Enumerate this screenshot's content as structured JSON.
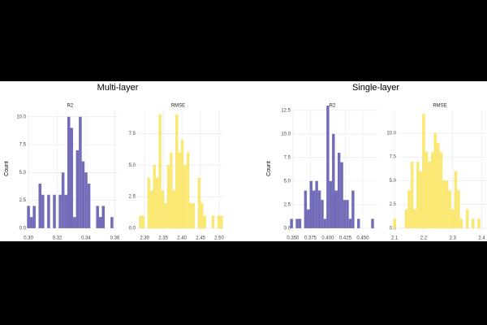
{
  "panels": [
    {
      "title": "Multi-layer"
    },
    {
      "title": "Single-layer"
    }
  ],
  "chart_data": [
    {
      "type": "histogram",
      "title": "R2",
      "ylabel": "Count",
      "color": "#5b52ad",
      "grid": true,
      "bins": [
        0.299,
        0.301,
        0.303,
        0.305,
        0.307,
        0.309,
        0.311,
        0.313,
        0.315,
        0.317,
        0.319,
        0.321,
        0.323,
        0.325,
        0.327,
        0.329,
        0.331,
        0.333,
        0.335,
        0.337,
        0.339,
        0.341,
        0.343,
        0.345,
        0.347,
        0.349,
        0.351,
        0.353,
        0.355,
        0.357,
        0.359
      ],
      "counts": [
        2,
        1,
        2,
        0,
        4,
        3,
        0,
        3,
        0,
        3,
        0,
        3,
        5,
        3,
        10,
        9,
        1,
        7,
        10,
        6,
        5,
        4,
        0,
        0,
        2,
        1,
        2,
        0,
        0,
        1
      ],
      "xlim": [
        0.296,
        0.362
      ],
      "ylim": [
        -0.3,
        11
      ],
      "xticks": [
        {
          "value": 0.3,
          "label": "0.30"
        },
        0.32,
        0.34,
        {
          "value": 0.36,
          "label": "0.36"
        }
      ],
      "yticks": [
        {
          "value": 0,
          "label": "0.0"
        },
        2.5,
        {
          "value": 5,
          "label": "5.0"
        },
        7.5,
        {
          "value": 10,
          "label": "10.0"
        }
      ]
    },
    {
      "type": "histogram",
      "title": "RMSE",
      "color": "#f9e45a",
      "grid": true,
      "bins": [
        2.285,
        2.2925,
        2.3,
        2.3075,
        2.315,
        2.3225,
        2.33,
        2.3375,
        2.345,
        2.3525,
        2.36,
        2.3675,
        2.375,
        2.3825,
        2.39,
        2.3975,
        2.405,
        2.4125,
        2.42,
        2.4275,
        2.435,
        2.4425,
        2.45,
        2.4575,
        2.465,
        2.4725,
        2.48,
        2.4875,
        2.495,
        2.5025,
        2.51
      ],
      "counts": [
        1,
        1,
        0,
        4,
        3,
        5,
        4,
        9,
        3,
        2,
        5,
        6,
        3,
        9,
        6,
        7,
        5,
        6,
        2,
        2,
        0,
        4,
        2,
        1,
        0,
        0,
        1,
        0,
        1,
        1
      ],
      "xlim": [
        2.267,
        2.513
      ],
      "ylim": [
        -0.25,
        9.7
      ],
      "xticks": [
        {
          "value": 2.3,
          "label": "2.30"
        },
        2.35,
        {
          "value": 2.4,
          "label": "2.40"
        },
        2.45,
        {
          "value": 2.5,
          "label": "2.50"
        }
      ],
      "yticks": [
        {
          "value": 0,
          "label": "0.0"
        },
        2.5,
        {
          "value": 5,
          "label": "5.0"
        },
        7.5
      ]
    },
    {
      "type": "histogram",
      "title": "R2",
      "ylabel": "Count",
      "color": "#5b52ad",
      "grid": true,
      "bins": [
        0.346,
        0.35,
        0.354,
        0.358,
        0.362,
        0.366,
        0.37,
        0.374,
        0.378,
        0.382,
        0.386,
        0.39,
        0.394,
        0.398,
        0.402,
        0.406,
        0.41,
        0.414,
        0.418,
        0.422,
        0.426,
        0.43,
        0.434,
        0.438,
        0.442,
        0.446,
        0.45,
        0.454,
        0.458,
        0.462,
        0.466
      ],
      "counts": [
        1,
        0,
        1,
        1,
        0,
        4,
        2,
        5,
        4,
        5,
        4,
        3,
        1,
        13,
        5,
        10,
        4,
        8,
        7,
        3,
        3,
        1,
        4,
        0,
        1,
        0,
        0,
        0,
        0,
        1
      ],
      "xlim": [
        0.342,
        0.471
      ],
      "ylim": [
        -0.35,
        13.0
      ],
      "xticks": [
        {
          "value": 0.35,
          "label": "0.350"
        },
        0.375,
        {
          "value": 0.4,
          "label": "0.400"
        },
        0.425,
        {
          "value": 0.45,
          "label": "0.450"
        }
      ],
      "yticks": [
        {
          "value": 0,
          "label": "0.0"
        },
        2.5,
        {
          "value": 5,
          "label": "5.0"
        },
        7.5,
        {
          "value": 10,
          "label": "10.0"
        },
        12.5
      ]
    },
    {
      "type": "histogram",
      "title": "RMSE",
      "color": "#f9e45a",
      "grid": true,
      "bins": [
        2.095,
        2.105,
        2.115,
        2.125,
        2.135,
        2.145,
        2.155,
        2.165,
        2.175,
        2.185,
        2.195,
        2.205,
        2.215,
        2.225,
        2.235,
        2.245,
        2.255,
        2.265,
        2.275,
        2.285,
        2.295,
        2.305,
        2.315,
        2.325,
        2.335,
        2.345,
        2.355,
        2.365,
        2.375,
        2.385,
        2.395
      ],
      "counts": [
        1,
        0,
        0,
        0,
        2,
        4,
        7,
        2,
        7,
        6,
        12,
        8,
        7,
        8,
        10,
        9,
        8,
        5,
        5,
        4,
        2,
        6,
        4,
        1,
        0,
        2,
        0,
        1,
        0,
        1
      ],
      "xlim": [
        2.094,
        2.418
      ],
      "ylim": [
        -0.35,
        12.9
      ],
      "xticks": [
        2.1,
        2.2,
        2.3,
        2.4
      ],
      "yticks": [
        {
          "value": 0,
          "label": "0.0"
        },
        2.5,
        {
          "value": 5,
          "label": "5.0"
        },
        7.5,
        {
          "value": 10,
          "label": "10.0"
        }
      ]
    }
  ]
}
